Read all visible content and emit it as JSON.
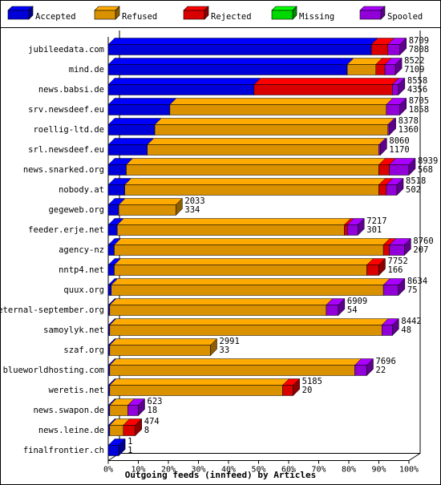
{
  "chart_data": {
    "type": "bar",
    "orientation": "horizontal",
    "stacked": true,
    "xlabel": "Outgoing feeds (innfeed) by Articles",
    "x_ticks": [
      "0%",
      "10%",
      "20%",
      "30%",
      "40%",
      "50%",
      "60%",
      "70%",
      "80%",
      "90%",
      "100%"
    ],
    "xlim": [
      0,
      100
    ],
    "legend_position": "top",
    "series": [
      {
        "name": "Accepted",
        "color": "#0000ff"
      },
      {
        "name": "Refused",
        "color": "#ffaa00"
      },
      {
        "name": "Rejected",
        "color": "#ff0000"
      },
      {
        "name": "Missing",
        "color": "#00ff00"
      },
      {
        "name": "Spooled",
        "color": "#aa00ff"
      }
    ],
    "rows": [
      {
        "label": "jubileedata.com",
        "offered": "8709",
        "accepted": "7808",
        "pct": [
          87.5,
          0,
          5.5,
          0,
          4
        ]
      },
      {
        "label": "mind.de",
        "offered": "8522",
        "accepted": "7109",
        "pct": [
          79.5,
          9.5,
          3,
          0,
          3.5
        ]
      },
      {
        "label": "news.babsi.de",
        "offered": "8558",
        "accepted": "4356",
        "pct": [
          48.5,
          0,
          46,
          0,
          2
        ]
      },
      {
        "label": "srv.newsdeef.eu",
        "offered": "8705",
        "accepted": "1858",
        "pct": [
          20.5,
          72,
          0,
          0,
          4.5
        ]
      },
      {
        "label": "roellig-ltd.de",
        "offered": "8378",
        "accepted": "1360",
        "pct": [
          15.5,
          77.5,
          0,
          0,
          0.5
        ]
      },
      {
        "label": "srl.newsdeef.eu",
        "offered": "8060",
        "accepted": "1170",
        "pct": [
          13,
          77,
          0,
          0,
          0.5
        ]
      },
      {
        "label": "news.snarked.org",
        "offered": "8939",
        "accepted": "568",
        "pct": [
          6,
          84,
          3.5,
          0,
          6.5
        ]
      },
      {
        "label": "nobody.at",
        "offered": "8518",
        "accepted": "502",
        "pct": [
          5.5,
          84.5,
          2.5,
          0,
          3.5
        ]
      },
      {
        "label": "gegeweb.org",
        "offered": "2033",
        "accepted": "334",
        "pct": [
          3.5,
          19,
          0,
          0,
          0
        ]
      },
      {
        "label": "feeder.erje.net",
        "offered": "7217",
        "accepted": "301",
        "pct": [
          3,
          75.5,
          1,
          0,
          3.5
        ]
      },
      {
        "label": "agency-nz",
        "offered": "8760",
        "accepted": "207",
        "pct": [
          2,
          89.5,
          2,
          0,
          5
        ]
      },
      {
        "label": "nntp4.net",
        "offered": "7752",
        "accepted": "166",
        "pct": [
          2,
          84,
          4,
          0,
          0
        ]
      },
      {
        "label": "quux.org",
        "offered": "8634",
        "accepted": "75",
        "pct": [
          1,
          90.5,
          0,
          0,
          5
        ]
      },
      {
        "label": "eternal-september.org",
        "offered": "6909",
        "accepted": "54",
        "pct": [
          0.5,
          72,
          0,
          0,
          4
        ]
      },
      {
        "label": "samoylyk.net",
        "offered": "8442",
        "accepted": "48",
        "pct": [
          0.5,
          90.5,
          0,
          0,
          3.5
        ]
      },
      {
        "label": "szaf.org",
        "offered": "2991",
        "accepted": "33",
        "pct": [
          0.5,
          33.5,
          0,
          0,
          0
        ]
      },
      {
        "label": "blueworldhosting.com",
        "offered": "7696",
        "accepted": "22",
        "pct": [
          0.5,
          81.5,
          0,
          0,
          4
        ]
      },
      {
        "label": "weretis.net",
        "offered": "5185",
        "accepted": "20",
        "pct": [
          0.5,
          57.5,
          3.5,
          0,
          0
        ]
      },
      {
        "label": "news.swapon.de",
        "offered": "623",
        "accepted": "18",
        "pct": [
          0.5,
          6,
          0,
          0,
          3.5
        ]
      },
      {
        "label": "news.leine.de",
        "offered": "474",
        "accepted": "8",
        "pct": [
          0.5,
          4.5,
          4,
          0,
          0
        ]
      },
      {
        "label": "finalfrontier.ch",
        "offered": "1",
        "accepted": "1",
        "pct": [
          3.5,
          0,
          0,
          0,
          0
        ]
      }
    ]
  }
}
